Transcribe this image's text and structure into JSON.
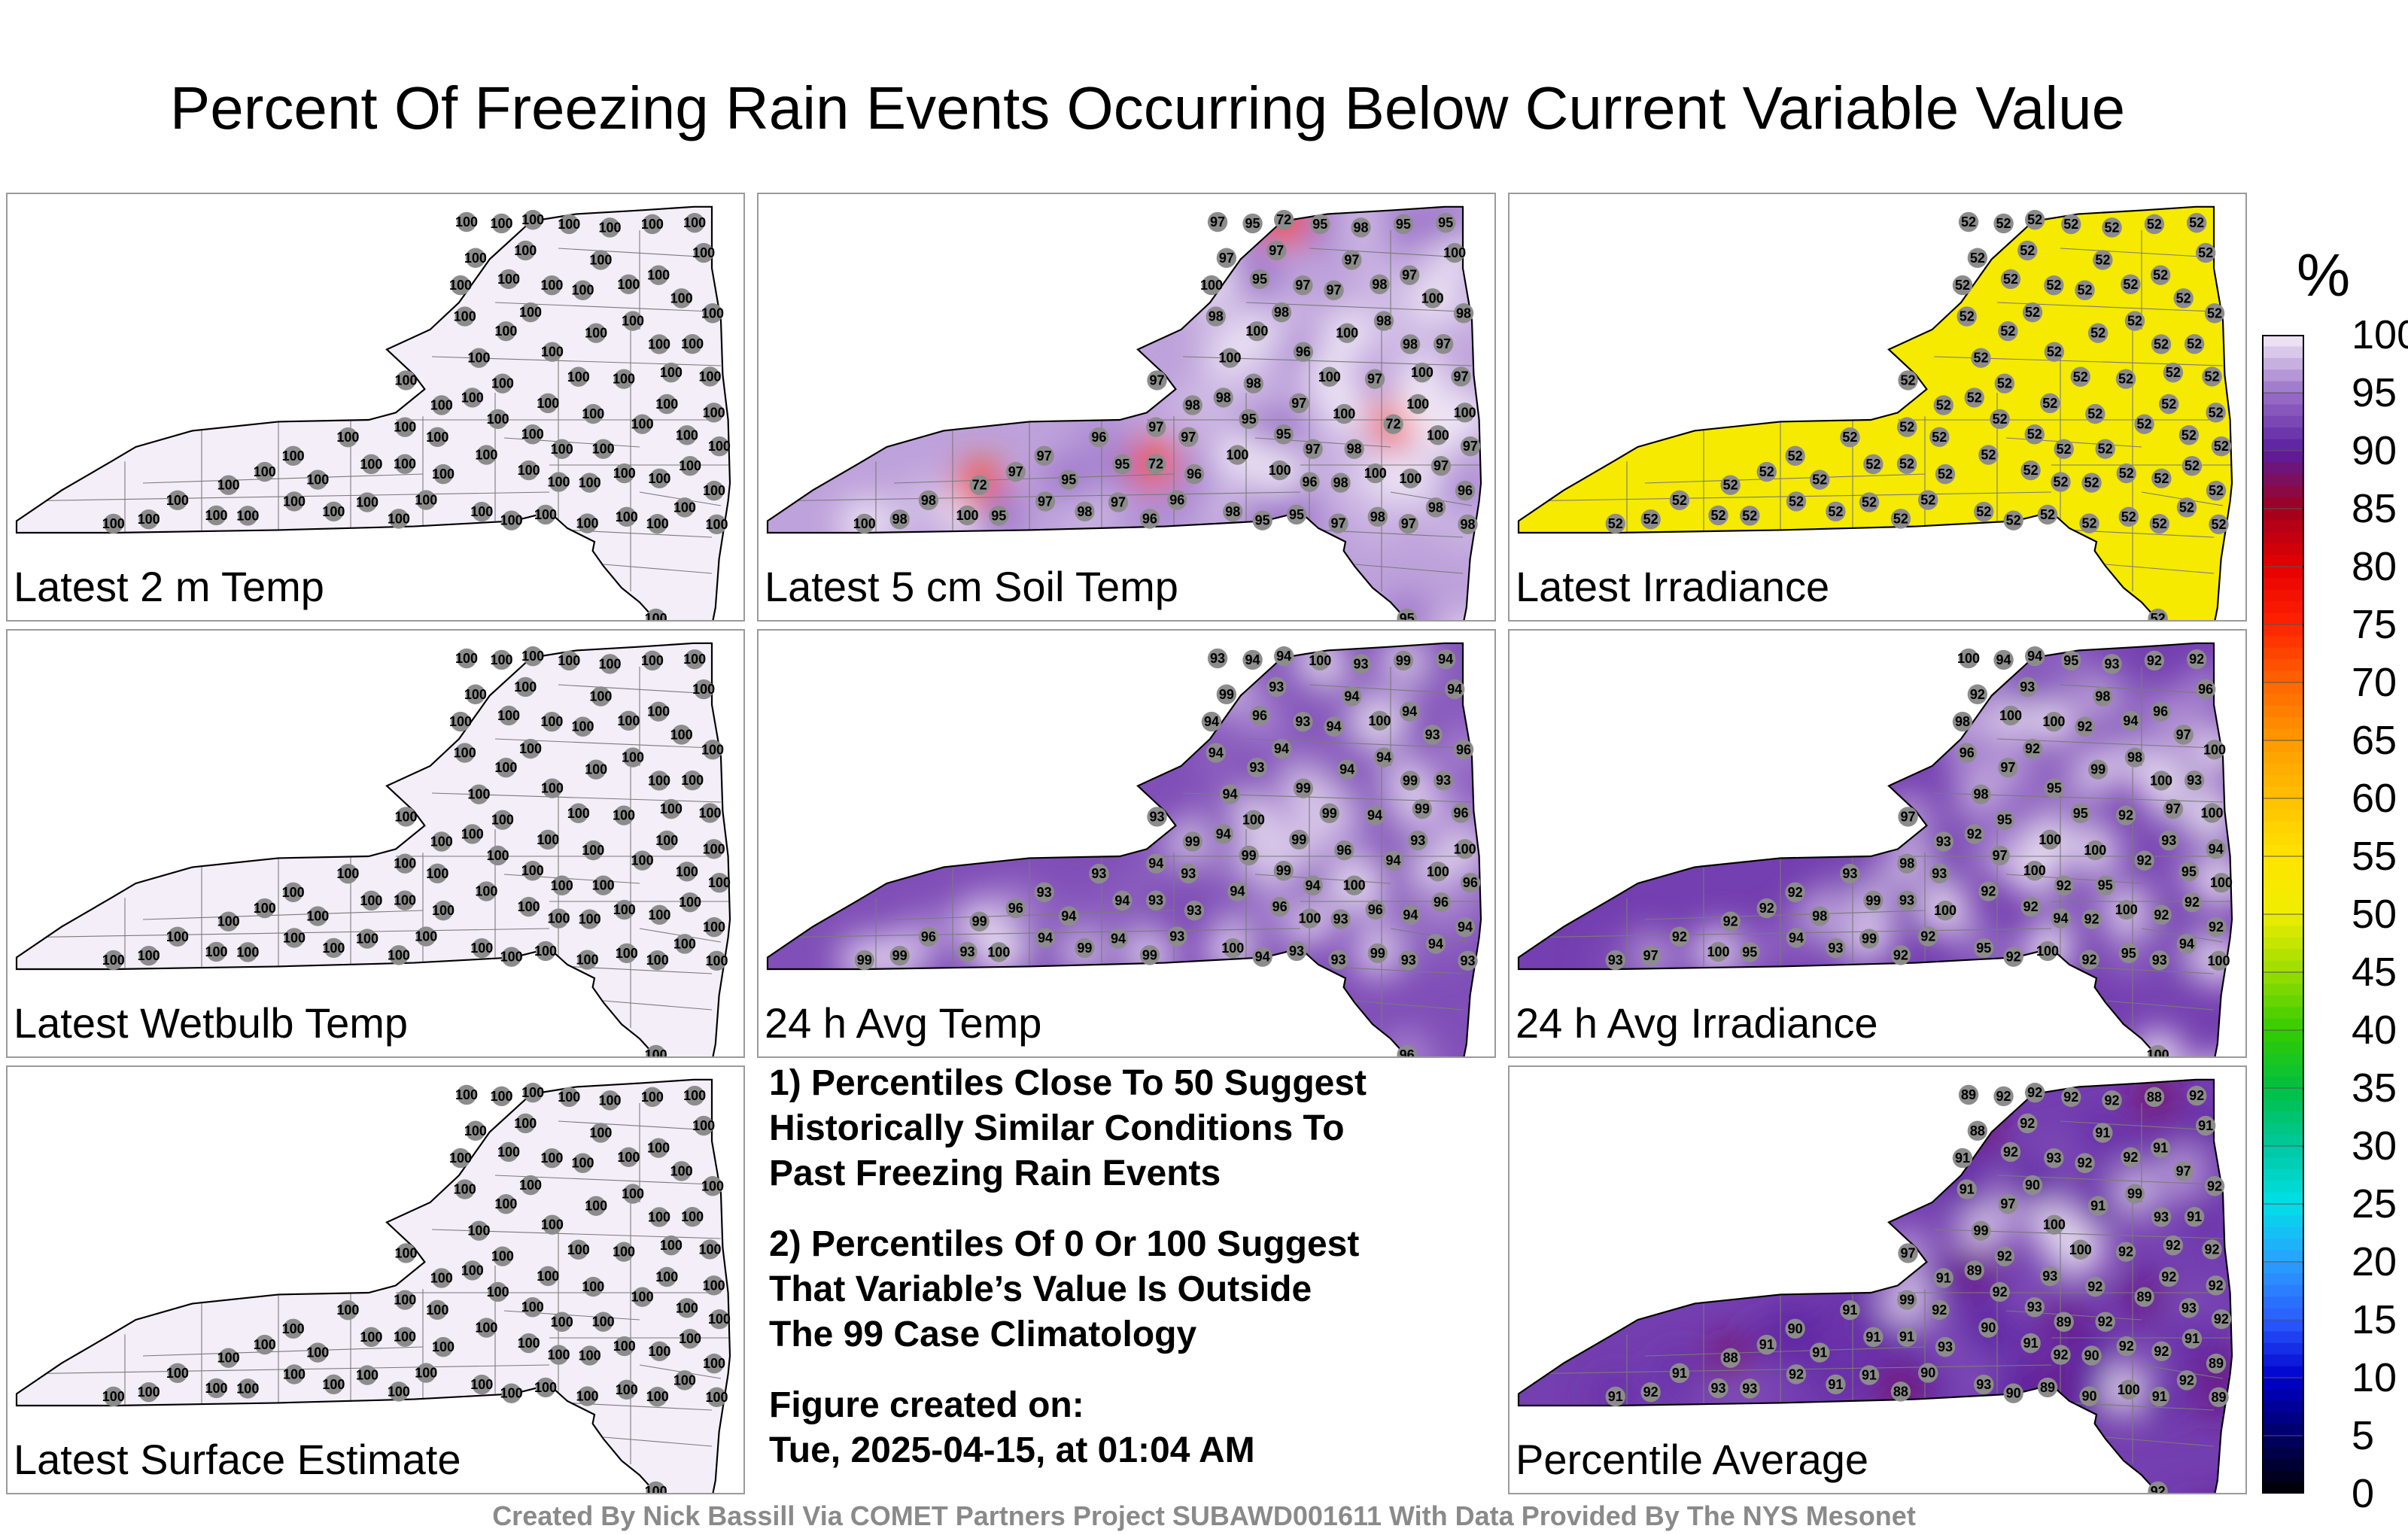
{
  "title": "Percent Of Freezing Rain Events Occurring Below Current Variable Value",
  "colors": {
    "panel_border": "#9a9a9a",
    "state_outline": "#000000",
    "county_lines": "#7a7a7a",
    "station_marker": "#8c8c8c"
  },
  "chart_data": {
    "type": "map-grid",
    "colorbar": {
      "unit": "%",
      "min": 0,
      "max": 100,
      "ticks": [
        "100",
        "95",
        "90",
        "85",
        "80",
        "75",
        "70",
        "65",
        "60",
        "55",
        "50",
        "45",
        "40",
        "35",
        "30",
        "25",
        "20",
        "15",
        "10",
        "5",
        "0"
      ],
      "stops": [
        {
          "v": 0,
          "color": "#000000"
        },
        {
          "v": 5,
          "color": "#000066"
        },
        {
          "v": 10,
          "color": "#0000cc"
        },
        {
          "v": 15,
          "color": "#2a5cff"
        },
        {
          "v": 20,
          "color": "#2aa0ff"
        },
        {
          "v": 25,
          "color": "#00e0e8"
        },
        {
          "v": 30,
          "color": "#00c8a0"
        },
        {
          "v": 35,
          "color": "#00c040"
        },
        {
          "v": 40,
          "color": "#33cc00"
        },
        {
          "v": 45,
          "color": "#99dd00"
        },
        {
          "v": 50,
          "color": "#eeee00"
        },
        {
          "v": 55,
          "color": "#ffe400"
        },
        {
          "v": 60,
          "color": "#ffc000"
        },
        {
          "v": 65,
          "color": "#ff9900"
        },
        {
          "v": 70,
          "color": "#ff6600"
        },
        {
          "v": 75,
          "color": "#ff2200"
        },
        {
          "v": 80,
          "color": "#e60000"
        },
        {
          "v": 85,
          "color": "#a0001e"
        },
        {
          "v": 90,
          "color": "#5a1ea0"
        },
        {
          "v": 95,
          "color": "#9a70c8"
        },
        {
          "v": 100,
          "color": "#f4eef8"
        }
      ]
    },
    "panels": [
      {
        "label": "Latest 2 m Temp",
        "base_value": 100,
        "values": [
          100
        ]
      },
      {
        "label": "Latest 5 cm Soil Temp",
        "base_value": 97,
        "values": [
          97,
          98,
          97,
          96,
          72,
          97,
          95,
          98,
          100,
          95,
          97,
          98,
          100,
          97,
          100,
          98,
          96,
          100,
          97,
          95,
          100,
          98,
          98,
          95,
          97,
          100
        ]
      },
      {
        "label": "Latest Irradiance",
        "base_value": 52,
        "values": [
          52
        ]
      },
      {
        "label": "Latest Wetbulb Temp",
        "base_value": 100,
        "values": [
          100
        ]
      },
      {
        "label": "24 h Avg Temp",
        "base_value": 93,
        "values": [
          94,
          96,
          93,
          93,
          94,
          93,
          99,
          94,
          100,
          99,
          94,
          93,
          96,
          94,
          93,
          94,
          99,
          100,
          93,
          94,
          96,
          94,
          99,
          100,
          99
        ]
      },
      {
        "label": "24 h Avg Irradiance",
        "base_value": 92,
        "values": [
          92,
          92,
          93,
          92,
          92,
          93,
          92,
          94,
          95,
          97,
          98,
          100,
          100,
          96,
          97,
          98,
          95,
          94,
          100,
          99,
          100,
          92,
          93,
          95,
          100
        ]
      },
      {
        "label": "Latest Surface Estimate",
        "base_value": 100,
        "values": [
          100
        ]
      },
      {
        "label": "Percentile Average",
        "base_value": 92,
        "values": [
          92,
          91,
          92,
          90,
          89,
          91,
          88,
          92,
          93,
          92,
          91,
          89,
          92,
          91,
          97,
          99,
          100,
          92,
          93,
          91,
          92,
          90,
          91,
          92,
          93
        ]
      }
    ]
  },
  "notes": [
    "1) Percentiles Close To 50 Suggest\nHistorically Similar Conditions To\nPast Freezing Rain Events",
    "2) Percentiles Of 0 Or 100 Suggest\nThat Variable’s Value Is Outside\nThe 99 Case Climatology",
    "Figure created on:\nTue, 2025-04-15, at 01:04 AM"
  ],
  "credit": "Created By Nick Bassill Via COMET Partners Project SUBAWD001611 With Data Provided By The NYS Mesonet"
}
